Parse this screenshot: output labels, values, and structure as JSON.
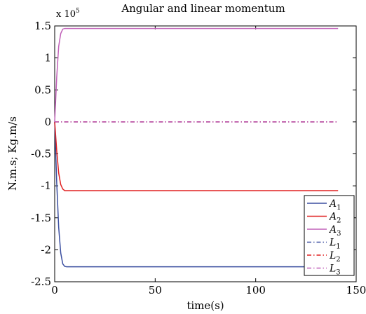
{
  "chart_data": {
    "type": "line",
    "title": "Angular and linear momentum",
    "xlabel": "time(s)",
    "ylabel": "N.m.s; Kg.m/s",
    "xlim": [
      0,
      150
    ],
    "ylim": [
      -250000,
      150000
    ],
    "x_ticks": [
      0,
      50,
      100,
      150
    ],
    "x_tick_labels": [
      "0",
      "50",
      "100",
      "150"
    ],
    "y_ticks": [
      -250000,
      -200000,
      -150000,
      -100000,
      -50000,
      0,
      50000,
      100000,
      150000
    ],
    "y_tick_labels": [
      "-2.5",
      "-2",
      "-1.5",
      "-1",
      "-0.5",
      "0",
      "0.5",
      "1",
      "1.5"
    ],
    "y_multiplier_base": "x 10",
    "y_multiplier_exp": "5",
    "grid": false,
    "legend_position": "bottom-right",
    "series": [
      {
        "name": "A",
        "sub": "1",
        "color": "#3b4fa0",
        "dash": "solid",
        "x": [
          0,
          1,
          2,
          3,
          4,
          5,
          6,
          141
        ],
        "y": [
          0,
          -95000,
          -165000,
          -205000,
          -222000,
          -226000,
          -226500,
          -226500
        ]
      },
      {
        "name": "A",
        "sub": "2",
        "color": "#e02020",
        "dash": "solid",
        "x": [
          0,
          1,
          2,
          3,
          4,
          5,
          141
        ],
        "y": [
          0,
          -45000,
          -80000,
          -98000,
          -105000,
          -107500,
          -107500
        ]
      },
      {
        "name": "A",
        "sub": "3",
        "color": "#c060b8",
        "dash": "solid",
        "x": [
          0,
          1,
          2,
          3,
          4,
          5,
          141
        ],
        "y": [
          0,
          70000,
          118000,
          138000,
          145000,
          146000,
          146000
        ]
      },
      {
        "name": "L",
        "sub": "1",
        "color": "#3b4fa0",
        "dash": "dashdot",
        "x": [
          0,
          141
        ],
        "y": [
          0,
          0
        ]
      },
      {
        "name": "L",
        "sub": "2",
        "color": "#e02020",
        "dash": "dashdot",
        "x": [
          0,
          141
        ],
        "y": [
          0,
          0
        ]
      },
      {
        "name": "L",
        "sub": "3",
        "color": "#c060b8",
        "dash": "dashdot",
        "x": [
          0,
          141
        ],
        "y": [
          0,
          0
        ]
      }
    ]
  }
}
